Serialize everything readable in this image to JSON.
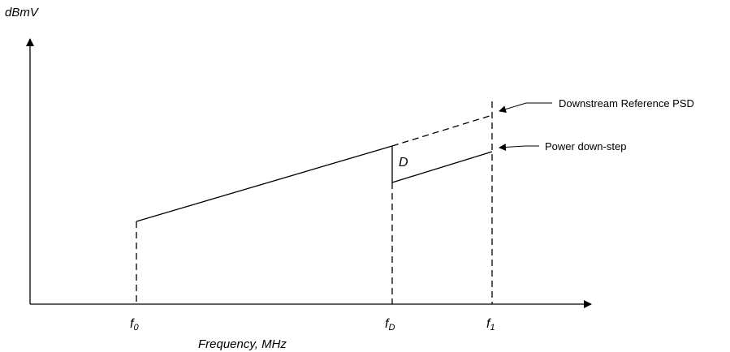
{
  "diagram": {
    "y_axis_label": "dBmV",
    "x_axis_label": "Frequency, MHz",
    "x_ticks": {
      "f0": {
        "main": "f",
        "sub": "0"
      },
      "fD": {
        "main": "f",
        "sub": "D"
      },
      "f1": {
        "main": "f",
        "sub": "1"
      }
    },
    "step_label": "D",
    "callouts": {
      "reference": "Downstream Reference PSD",
      "downstep": "Power down-step"
    },
    "line_color": "#000000"
  }
}
